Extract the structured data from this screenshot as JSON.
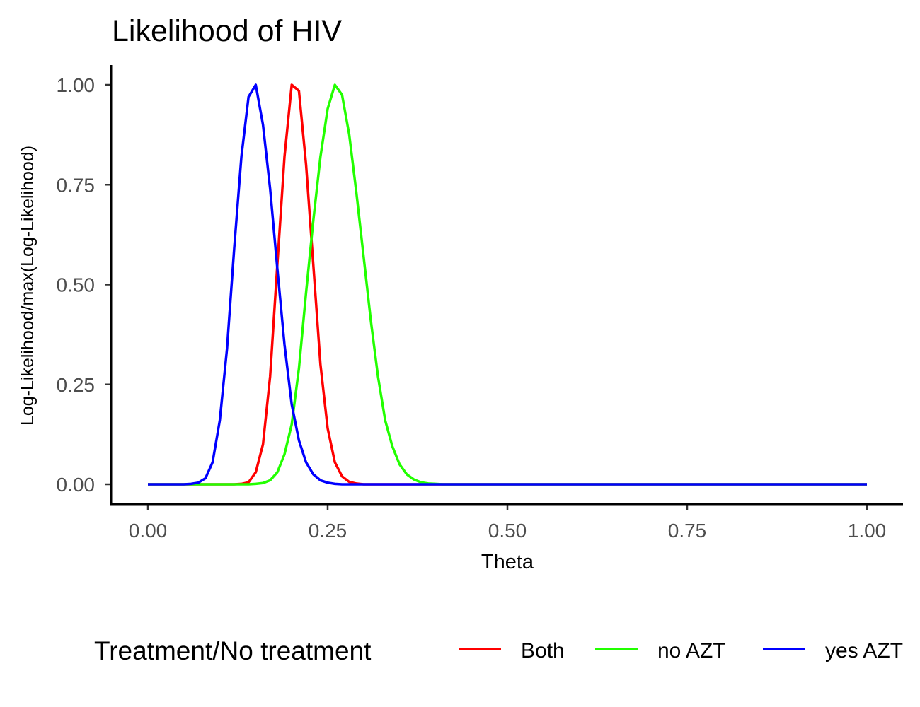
{
  "chart_data": {
    "type": "line",
    "title": "Likelihood of HIV",
    "xlabel": "Theta",
    "ylabel": "Log-Likelihood/max(Log-Likelihood)",
    "xlim": [
      0,
      1
    ],
    "ylim": [
      0,
      1
    ],
    "x_ticks": [
      "0.00",
      "0.25",
      "0.50",
      "0.75",
      "1.00"
    ],
    "y_ticks": [
      "0.00",
      "0.25",
      "0.50",
      "0.75",
      "1.00"
    ],
    "grid": false,
    "legend_title": "Treatment/No treatment",
    "legend_position": "bottom",
    "x": [
      0,
      0.01,
      0.02,
      0.03,
      0.04,
      0.05,
      0.06,
      0.07,
      0.08,
      0.09,
      0.1,
      0.11,
      0.12,
      0.13,
      0.14,
      0.15,
      0.16,
      0.17,
      0.18,
      0.19,
      0.2,
      0.21,
      0.22,
      0.23,
      0.24,
      0.25,
      0.26,
      0.27,
      0.28,
      0.29,
      0.3,
      0.31,
      0.32,
      0.33,
      0.34,
      0.35,
      0.36,
      0.37,
      0.38,
      0.39,
      0.4,
      0.41,
      0.42,
      0.43,
      0.44,
      0.45,
      0.46,
      0.47,
      0.48,
      0.49,
      0.5,
      0.51,
      0.52,
      0.53,
      0.54,
      0.55,
      0.56,
      0.57,
      0.58,
      0.59,
      0.6,
      0.61,
      0.62,
      0.63,
      0.64,
      0.65,
      0.66,
      0.67,
      0.68,
      0.69,
      0.7,
      0.71,
      0.72,
      0.73,
      0.74,
      0.75,
      0.76,
      0.77,
      0.78,
      0.79,
      0.8,
      0.81,
      0.82,
      0.83,
      0.84,
      0.85,
      0.86,
      0.87,
      0.88,
      0.89,
      0.9,
      0.91,
      0.92,
      0.93,
      0.94,
      0.95,
      0.96,
      0.97,
      0.98,
      0.99,
      1.0
    ],
    "series": [
      {
        "name": "Both",
        "color": "#ff0000",
        "values": [
          0,
          0,
          0,
          0,
          0,
          0,
          0,
          0,
          0,
          0,
          0,
          0,
          0,
          0.001,
          0.005,
          0.03,
          0.1,
          0.27,
          0.55,
          0.82,
          1.0,
          0.985,
          0.8,
          0.55,
          0.3,
          0.14,
          0.055,
          0.02,
          0.006,
          0.002,
          0,
          0,
          0,
          0,
          0,
          0,
          0,
          0,
          0,
          0,
          0,
          0,
          0,
          0,
          0,
          0,
          0,
          0,
          0,
          0,
          0,
          0,
          0,
          0,
          0,
          0,
          0,
          0,
          0,
          0,
          0,
          0,
          0,
          0,
          0,
          0,
          0,
          0,
          0,
          0,
          0,
          0,
          0,
          0,
          0,
          0,
          0,
          0,
          0,
          0,
          0,
          0,
          0,
          0,
          0,
          0,
          0,
          0,
          0,
          0,
          0,
          0,
          0,
          0,
          0,
          0,
          0,
          0,
          0,
          0,
          0
        ]
      },
      {
        "name": "no AZT",
        "color": "#22ff00",
        "values": [
          0,
          0,
          0,
          0,
          0,
          0,
          0,
          0,
          0,
          0,
          0,
          0,
          0,
          0,
          0,
          0.001,
          0.003,
          0.01,
          0.03,
          0.075,
          0.15,
          0.29,
          0.48,
          0.66,
          0.82,
          0.94,
          1.0,
          0.975,
          0.875,
          0.73,
          0.57,
          0.41,
          0.27,
          0.16,
          0.095,
          0.05,
          0.025,
          0.012,
          0.005,
          0.002,
          0.001,
          0,
          0,
          0,
          0,
          0,
          0,
          0,
          0,
          0,
          0,
          0,
          0,
          0,
          0,
          0,
          0,
          0,
          0,
          0,
          0,
          0,
          0,
          0,
          0,
          0,
          0,
          0,
          0,
          0,
          0,
          0,
          0,
          0,
          0,
          0,
          0,
          0,
          0,
          0,
          0,
          0,
          0,
          0,
          0,
          0,
          0,
          0,
          0,
          0,
          0,
          0,
          0,
          0,
          0,
          0,
          0,
          0,
          0,
          0,
          0
        ]
      },
      {
        "name": "yes AZT",
        "color": "#0000ff",
        "values": [
          0,
          0,
          0,
          0,
          0,
          0,
          0.001,
          0.004,
          0.015,
          0.055,
          0.16,
          0.34,
          0.59,
          0.82,
          0.97,
          1.0,
          0.9,
          0.74,
          0.54,
          0.35,
          0.2,
          0.11,
          0.055,
          0.025,
          0.01,
          0.004,
          0.001,
          0,
          0,
          0,
          0,
          0,
          0,
          0,
          0,
          0,
          0,
          0,
          0,
          0,
          0,
          0,
          0,
          0,
          0,
          0,
          0,
          0,
          0,
          0,
          0,
          0,
          0,
          0,
          0,
          0,
          0,
          0,
          0,
          0,
          0,
          0,
          0,
          0,
          0,
          0,
          0,
          0,
          0,
          0,
          0,
          0,
          0,
          0,
          0,
          0,
          0,
          0,
          0,
          0,
          0,
          0,
          0,
          0,
          0,
          0,
          0,
          0,
          0,
          0,
          0,
          0,
          0,
          0,
          0,
          0,
          0,
          0,
          0,
          0,
          0
        ]
      }
    ]
  }
}
